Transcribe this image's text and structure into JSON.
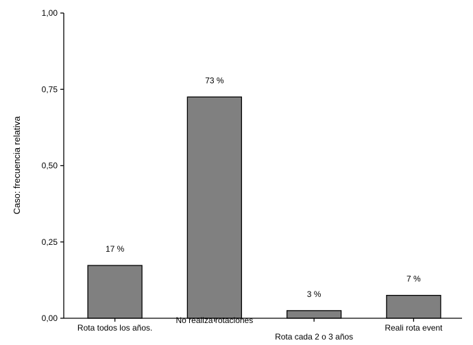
{
  "chart_data": {
    "type": "bar",
    "categories": [
      "Rota todos los años.",
      "No realiza rotaciones",
      "Rota cada 2 o 3 años",
      "Reali rota event"
    ],
    "values": [
      0.173,
      0.725,
      0.025,
      0.075
    ],
    "data_labels": [
      "17 %",
      "73 %",
      "3 %",
      "7 %"
    ],
    "yticks": [
      "0,00",
      "0,25",
      "0,50",
      "0,75",
      "1,00"
    ],
    "ytick_values": [
      0,
      0.25,
      0.5,
      0.75,
      1.0
    ],
    "ylim": [
      0,
      1.0
    ],
    "ylabel": "Caso: frecuencia relativa",
    "xlabel": "",
    "title": "",
    "grid": false,
    "bar_color": "#808080"
  }
}
